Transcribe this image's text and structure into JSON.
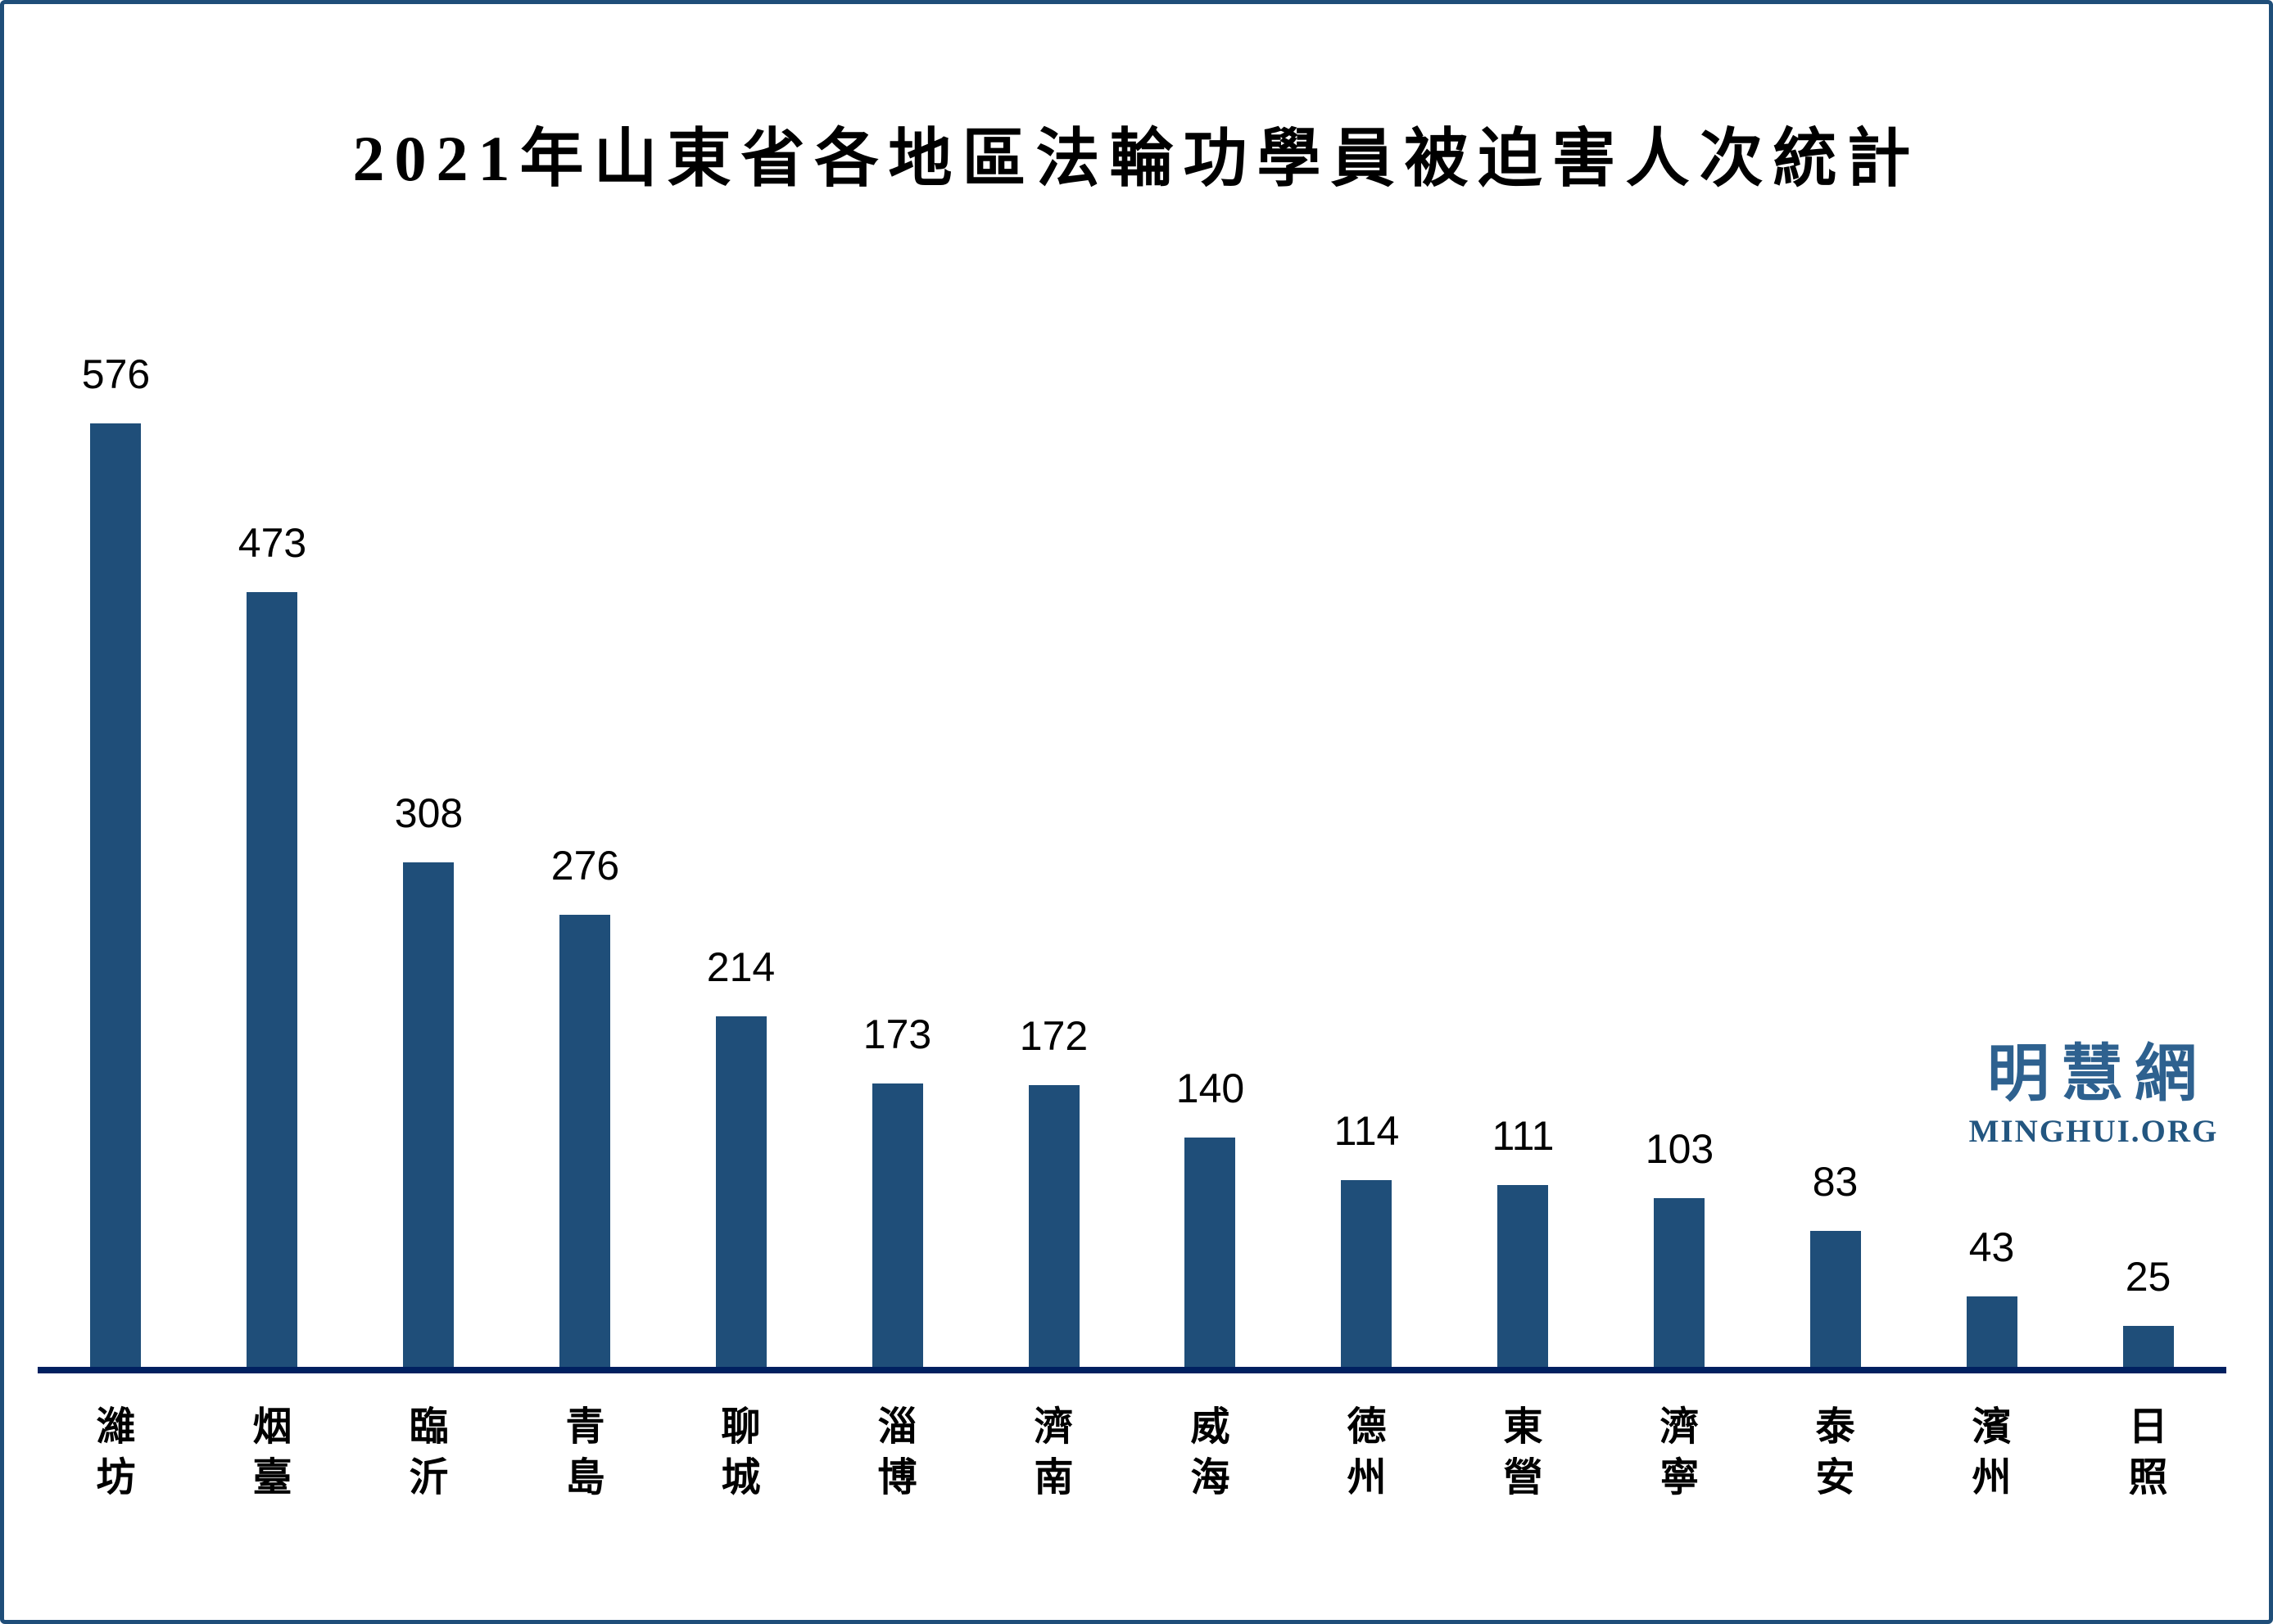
{
  "title": "2021年山東省各地區法輪功學員被迫害人次統計",
  "watermark": {
    "cjk": "明慧網",
    "latin": "MINGHUI.ORG",
    "color": "#2E618F"
  },
  "chart_data": {
    "type": "bar",
    "title": "2021年山東省各地區法輪功學員被迫害人次統計",
    "categories": [
      "濰坊",
      "烟臺",
      "臨沂",
      "青島",
      "聊城",
      "淄博",
      "濟南",
      "威海",
      "德州",
      "東營",
      "濟寧",
      "泰安",
      "濱州",
      "日照"
    ],
    "values": [
      576,
      473,
      308,
      276,
      214,
      173,
      172,
      140,
      114,
      111,
      103,
      83,
      43,
      25
    ],
    "data_labels": [
      576,
      473,
      308,
      276,
      214,
      173,
      172,
      140,
      114,
      111,
      103,
      83,
      43,
      25
    ],
    "xlabel": "",
    "ylabel": "",
    "ylim": [
      0,
      600
    ],
    "grid": false,
    "legend": "none",
    "bar_color": "#1F4E79",
    "axis_line_color": "#002060",
    "label_color": "#000000",
    "background_color": "#FFFFFF",
    "border_color": "#1F4E79",
    "category_orientation": "vertical-stacked"
  }
}
